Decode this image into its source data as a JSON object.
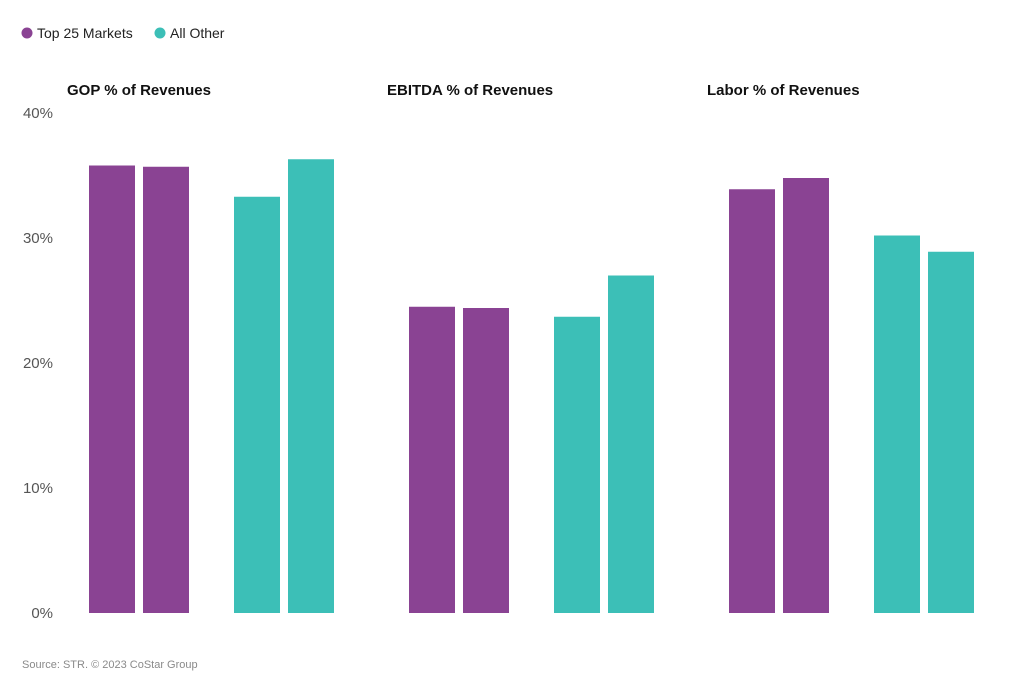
{
  "colors": {
    "top25": "#8a4393",
    "all_other": "#3cbfb7"
  },
  "chart_data": {
    "type": "bar",
    "legend": [
      {
        "name": "Top 25 Markets",
        "color": "#8a4393"
      },
      {
        "name": "All Other",
        "color": "#3cbfb7"
      }
    ],
    "legend_position": "top-left",
    "grid": false,
    "ylim": [
      0,
      40
    ],
    "yticks": [
      "0%",
      "10%",
      "20%",
      "30%",
      "40%"
    ],
    "ytick_values": [
      0,
      10,
      20,
      30,
      40
    ],
    "panels": [
      {
        "title": "GOP % of Revenues",
        "series": [
          {
            "name": "Top 25 Markets",
            "values": [
              35.8,
              35.7
            ]
          },
          {
            "name": "All Other",
            "values": [
              33.3,
              36.3
            ]
          }
        ]
      },
      {
        "title": "EBITDA % of Revenues",
        "series": [
          {
            "name": "Top 25 Markets",
            "values": [
              24.5,
              24.4
            ]
          },
          {
            "name": "All Other",
            "values": [
              23.7,
              27.0
            ]
          }
        ]
      },
      {
        "title": "Labor % of Revenues",
        "series": [
          {
            "name": "Top 25 Markets",
            "values": [
              33.9,
              34.8
            ]
          },
          {
            "name": "All Other",
            "values": [
              30.2,
              28.9
            ]
          }
        ]
      }
    ]
  },
  "source": "Source: STR. © 2023 CoStar Group"
}
